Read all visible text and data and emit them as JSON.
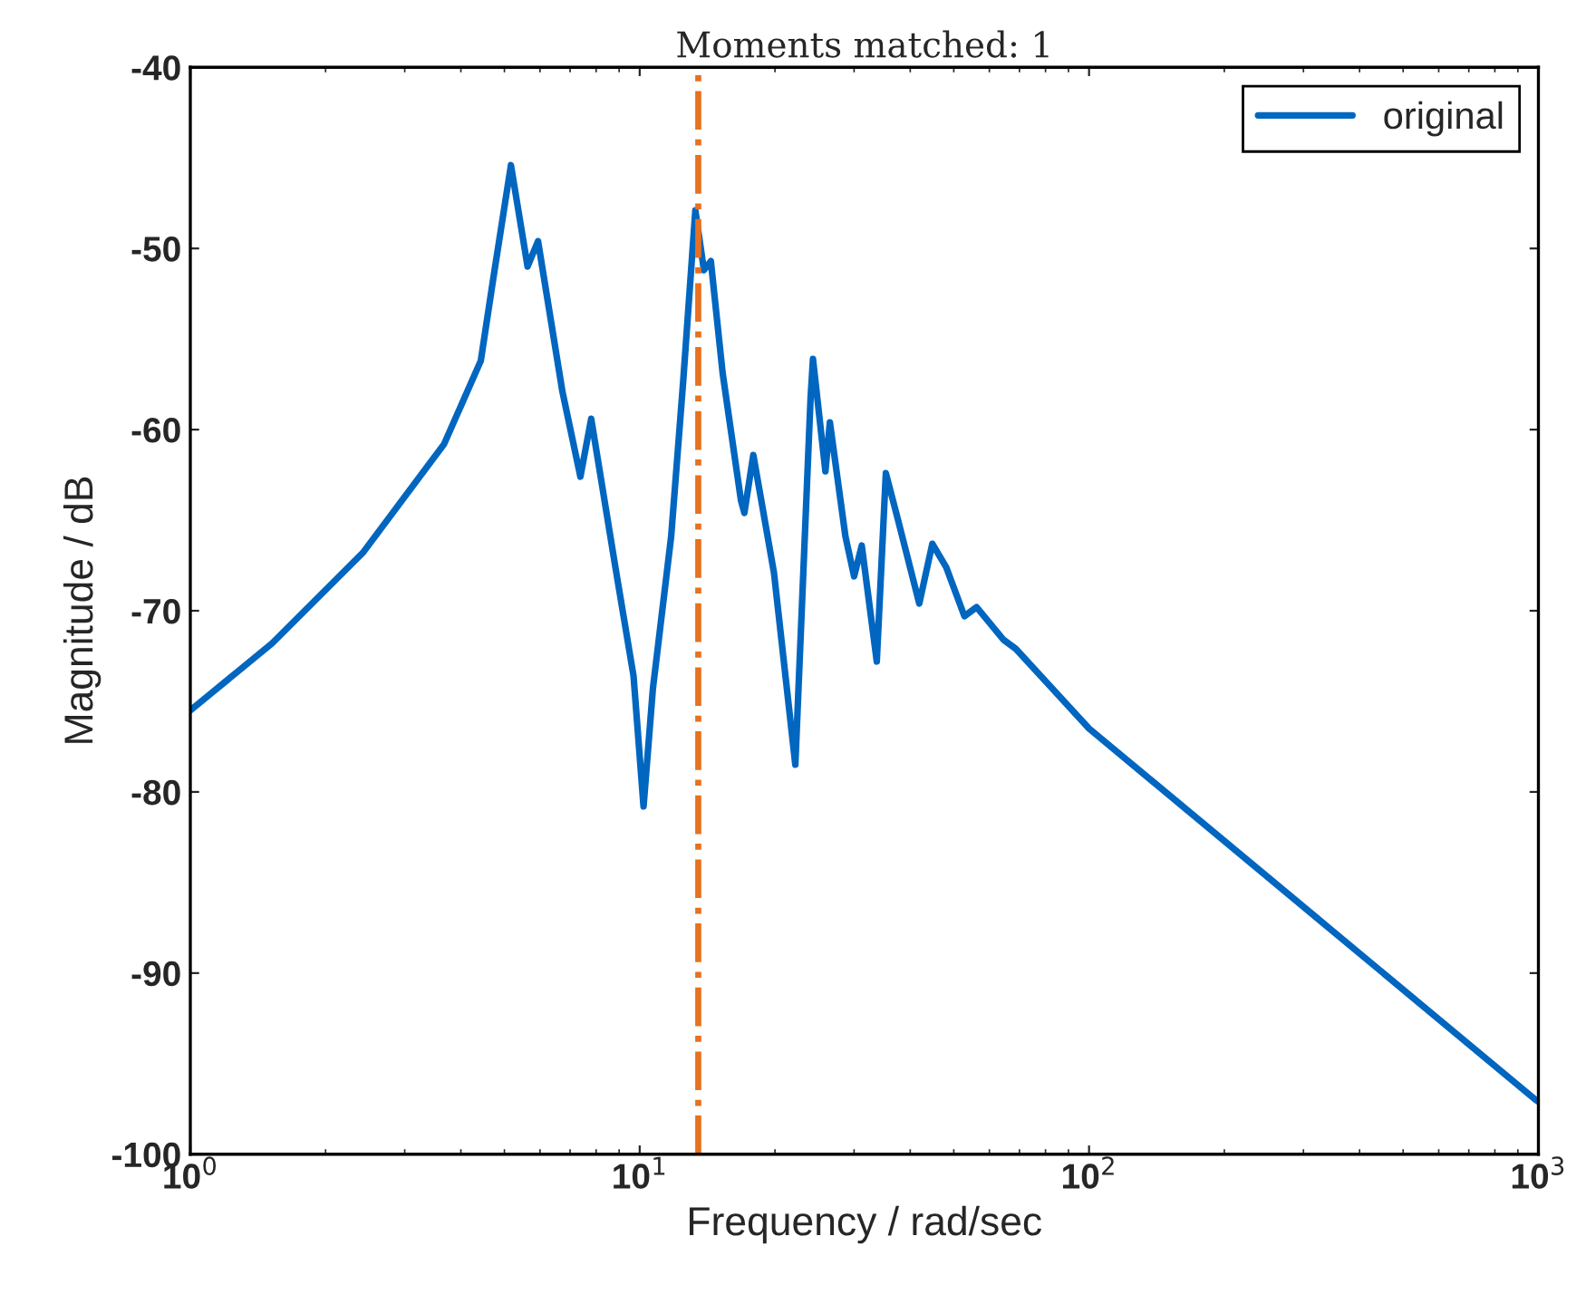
{
  "chart_data": {
    "type": "line",
    "title": "Moments matched: 1",
    "xlabel": "Frequency / rad/sec",
    "ylabel": "Magnitude / dB",
    "log": "x",
    "xlim": [
      1,
      1000
    ],
    "ylim": [
      -100,
      -40
    ],
    "xticks": [
      {
        "value": 1,
        "label": "10$^{0}$"
      },
      {
        "value": 10,
        "label": "10$^{1}$"
      },
      {
        "value": 100,
        "label": "10$^{2}$"
      },
      {
        "value": 1000,
        "label": "10$^{3}$"
      }
    ],
    "yticks": [
      -100,
      -90,
      -80,
      -70,
      -60,
      -50,
      -40
    ],
    "grid": false,
    "legend": "top right",
    "line_style": "solid",
    "marker": "none",
    "series": [
      {
        "name": "original",
        "color": "#0066c0",
        "x": [
          1,
          1.52,
          2.42,
          3.67,
          4.43,
          4.72,
          5.17,
          5.63,
          5.94,
          6.73,
          7.38,
          7.8,
          8.83,
          9.69,
          10.2,
          10.7,
          11.75,
          12.5,
          13.3,
          13.9,
          14.4,
          15.3,
          16.8,
          17.1,
          17.9,
          19.9,
          22.2,
          24.0,
          24.3,
          25.9,
          26.5,
          28.7,
          30.0,
          31.2,
          33.7,
          35.3,
          37.5,
          41.9,
          44.8,
          48.1,
          52.8,
          56.2,
          64.5,
          68.7,
          100,
          323,
          986,
          1000
        ],
        "values": [
          -75.5,
          -71.8,
          -66.8,
          -60.8,
          -56.2,
          -51.7,
          -45.4,
          -51.0,
          -49.6,
          -57.9,
          -62.6,
          -59.4,
          -67.6,
          -73.6,
          -80.8,
          -74.3,
          -65.9,
          -57.3,
          -47.9,
          -51.2,
          -50.7,
          -56.9,
          -63.9,
          -64.6,
          -61.4,
          -67.9,
          -78.5,
          -58.3,
          -56.1,
          -62.3,
          -59.6,
          -65.9,
          -68.1,
          -66.4,
          -72.8,
          -62.4,
          -64.9,
          -69.6,
          -66.3,
          -67.6,
          -70.3,
          -69.8,
          -71.6,
          -72.1,
          -76.5,
          -87.0,
          -97.0,
          -97.1
        ]
      }
    ],
    "ref_lines": [
      {
        "axis": "x",
        "value": 13.5,
        "color": "#e8701e",
        "line_style": "dashdot"
      }
    ]
  }
}
